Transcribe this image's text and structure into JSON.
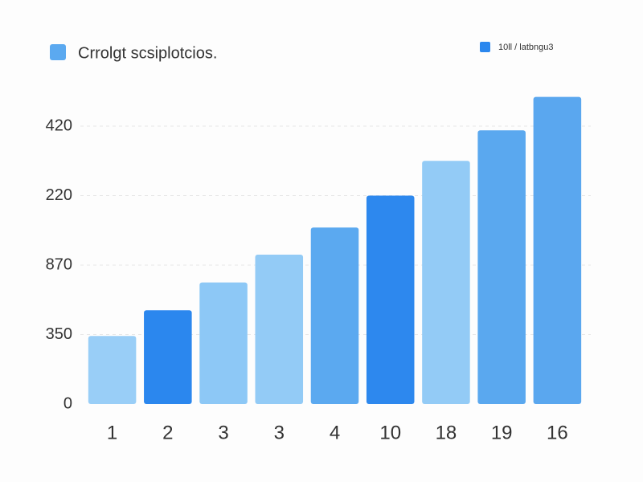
{
  "chart_data": {
    "type": "bar",
    "title": "Crrolgt scsiplotcios.",
    "legend": {
      "label": "10ll / latbngu3",
      "color": "#2b87ee",
      "position": "top-right"
    },
    "title_icon_color": "#5ba9f0",
    "categories": [
      "1",
      "2",
      "3",
      "3",
      "4",
      "10",
      "18",
      "19",
      "16"
    ],
    "values": [
      0.98,
      1.35,
      1.75,
      2.15,
      2.54,
      3.0,
      3.5,
      3.94,
      4.42
    ],
    "colors": [
      "#99cef7",
      "#2b87ee",
      "#8dc8f6",
      "#93cbf6",
      "#5ba9f0",
      "#2d88ee",
      "#93cbf6",
      "#5aa8ef",
      "#5aa7ef"
    ],
    "ylim": [
      0,
      4
    ],
    "yticks": [
      {
        "value": 0,
        "label": "0"
      },
      {
        "value": 1,
        "label": "350"
      },
      {
        "value": 2,
        "label": "870"
      },
      {
        "value": 3,
        "label": "220"
      },
      {
        "value": 4,
        "label": "420"
      }
    ],
    "grid": true
  }
}
